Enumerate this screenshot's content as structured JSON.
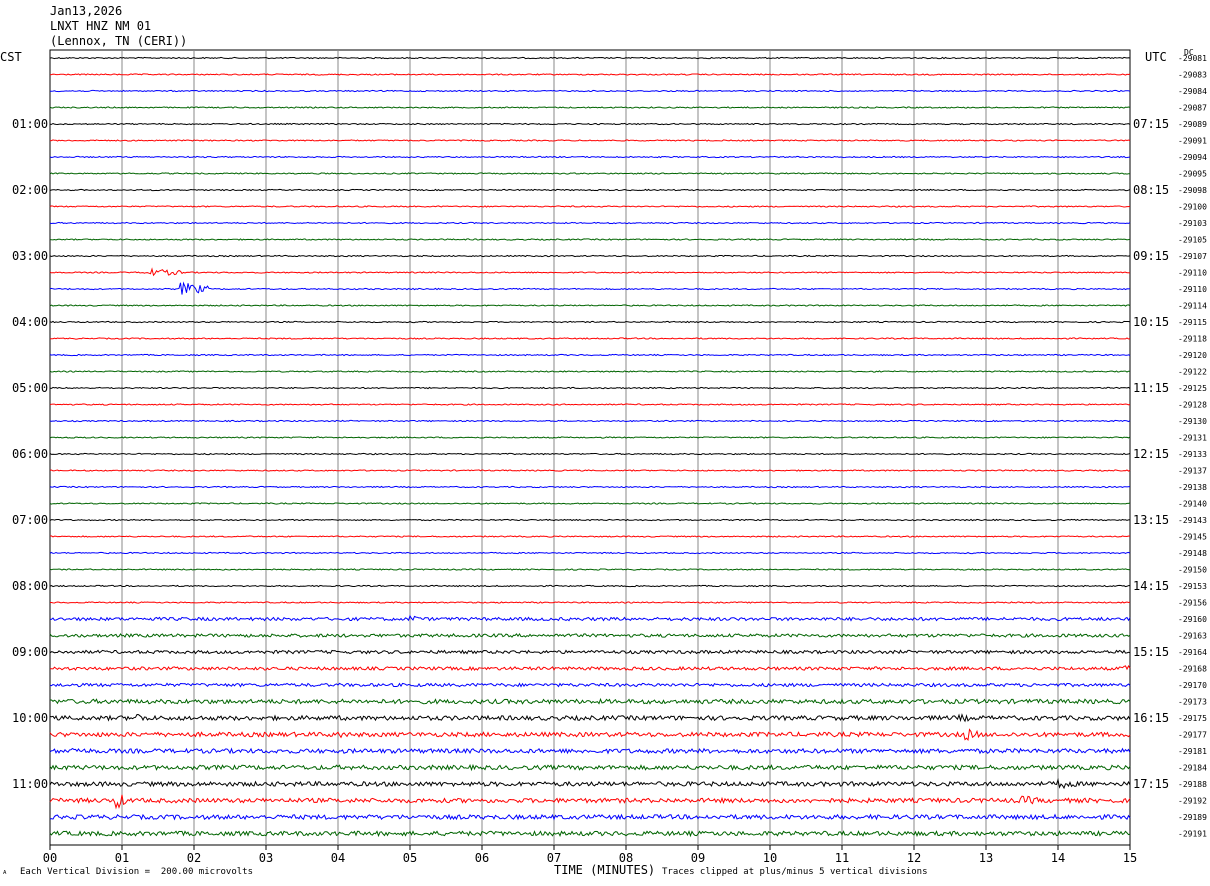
{
  "header": {
    "date": "Jan13,2026",
    "station": "LNXT HNZ NM 01",
    "location": "(Lennox, TN (CERI))"
  },
  "left_tz": "CST",
  "right_tz": "UTC",
  "dc_label": "DC",
  "footer": {
    "scale": "Each Vertical Division =  200.00 microvolts",
    "clip": "Traces clipped at plus/minus 5 vertical divisions",
    "marker": "ᴬ"
  },
  "colors": {
    "trace_cycle": [
      "#000000",
      "#ff0000",
      "#0000ff",
      "#006400"
    ],
    "grid": "#888888"
  },
  "chart_data": {
    "type": "line",
    "title": "",
    "xlabel": "TIME (MINUTES)",
    "xlim": [
      0,
      15
    ],
    "x_ticks": [
      "00",
      "01",
      "02",
      "03",
      "04",
      "05",
      "06",
      "07",
      "08",
      "09",
      "10",
      "11",
      "12",
      "13",
      "14",
      "15"
    ],
    "left_hour_labels": [
      "01:00",
      "02:00",
      "03:00",
      "04:00",
      "05:00",
      "06:00",
      "07:00",
      "08:00",
      "09:00",
      "10:00",
      "11:00"
    ],
    "right_hour_labels": [
      "07:15",
      "08:15",
      "09:15",
      "10:15",
      "11:15",
      "12:15",
      "13:15",
      "14:15",
      "15:15",
      "16:15",
      "17:15"
    ],
    "trace_offsets": [
      "-29081",
      "-29083",
      "-29084",
      "-29087",
      "-29089",
      "-29091",
      "-29094",
      "-29095",
      "-29098",
      "-29100",
      "-29103",
      "-29105",
      "-29107",
      "-29110",
      "-29110",
      "-29114",
      "-29115",
      "-29118",
      "-29120",
      "-29122",
      "-29125",
      "-29128",
      "-29130",
      "-29131",
      "-29133",
      "-29137",
      "-29138",
      "-29140",
      "-29143",
      "-29145",
      "-29148",
      "-29150",
      "-29153",
      "-29156",
      "-29160",
      "-29163",
      "-29164",
      "-29168",
      "-29170",
      "-29173",
      "-29175",
      "-29177",
      "-29181",
      "-29184",
      "-29188",
      "-29192",
      "-29189",
      "-29191"
    ],
    "events": [
      {
        "trace": 13,
        "minute": 1.3,
        "amp": 4,
        "dur": 0.6
      },
      {
        "trace": 14,
        "minute": 1.8,
        "amp": 7,
        "dur": 0.4
      },
      {
        "trace": 34,
        "minute": 5.0,
        "amp": 4,
        "dur": 0.2
      },
      {
        "trace": 37,
        "minute": 14.9,
        "amp": 5,
        "dur": 0.1
      },
      {
        "trace": 40,
        "minute": 1.2,
        "amp": 5,
        "dur": 0.2
      },
      {
        "trace": 40,
        "minute": 12.6,
        "amp": 4,
        "dur": 0.3
      },
      {
        "trace": 41,
        "minute": 4.0,
        "amp": 5,
        "dur": 0.1
      },
      {
        "trace": 41,
        "minute": 12.7,
        "amp": 7,
        "dur": 0.2
      },
      {
        "trace": 42,
        "minute": 0.3,
        "amp": 5,
        "dur": 0.2
      },
      {
        "trace": 44,
        "minute": 14.0,
        "amp": 5,
        "dur": 0.3
      },
      {
        "trace": 45,
        "minute": 0.9,
        "amp": 10,
        "dur": 0.15
      },
      {
        "trace": 45,
        "minute": 13.5,
        "amp": 5,
        "dur": 0.3
      }
    ]
  }
}
